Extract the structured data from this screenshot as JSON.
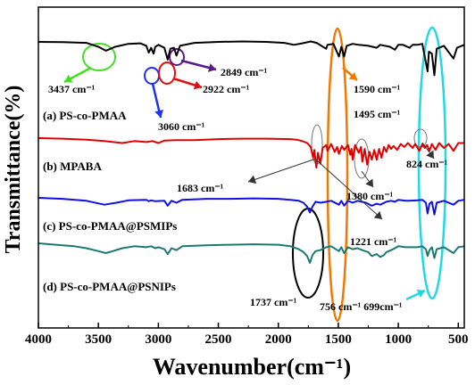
{
  "chart_data": {
    "type": "line",
    "xlabel": "Wavenumber(cm⁻¹)",
    "ylabel": "Transmittance(%)",
    "xlim": [
      4000,
      450
    ],
    "x_reversed": true,
    "x_ticks": [
      4000,
      3500,
      3000,
      2500,
      2000,
      1500,
      1000,
      500
    ],
    "grid": false,
    "series": [
      {
        "name": "(a) PS-co-PMAA",
        "color": "#000000",
        "points": [
          [
            4000,
            0.0
          ],
          [
            3800,
            0.5
          ],
          [
            3600,
            2
          ],
          [
            3500,
            10
          ],
          [
            3437,
            18
          ],
          [
            3360,
            10
          ],
          [
            3250,
            4
          ],
          [
            3150,
            3
          ],
          [
            3100,
            8
          ],
          [
            3080,
            22
          ],
          [
            3060,
            12
          ],
          [
            3040,
            24
          ],
          [
            3026,
            10
          ],
          [
            3000,
            6
          ],
          [
            2950,
            12
          ],
          [
            2922,
            36
          ],
          [
            2900,
            14
          ],
          [
            2870,
            12
          ],
          [
            2849,
            28
          ],
          [
            2820,
            8
          ],
          [
            2700,
            2
          ],
          [
            2500,
            0
          ],
          [
            2300,
            -1
          ],
          [
            2100,
            0
          ],
          [
            1950,
            2
          ],
          [
            1870,
            6
          ],
          [
            1800,
            3
          ],
          [
            1730,
            -1
          ],
          [
            1680,
            2
          ],
          [
            1601,
            14
          ],
          [
            1590,
            6
          ],
          [
            1540,
            4
          ],
          [
            1495,
            30
          ],
          [
            1475,
            10
          ],
          [
            1452,
            30
          ],
          [
            1430,
            8
          ],
          [
            1380,
            4
          ],
          [
            1330,
            6
          ],
          [
            1250,
            8
          ],
          [
            1180,
            12
          ],
          [
            1150,
            6
          ],
          [
            1070,
            10
          ],
          [
            1028,
            16
          ],
          [
            1000,
            6
          ],
          [
            960,
            6
          ],
          [
            906,
            12
          ],
          [
            880,
            6
          ],
          [
            840,
            6
          ],
          [
            800,
            4
          ],
          [
            756,
            60
          ],
          [
            745,
            20
          ],
          [
            720,
            24
          ],
          [
            699,
            68
          ],
          [
            680,
            14
          ],
          [
            620,
            8
          ],
          [
            540,
            34
          ],
          [
            510,
            12
          ],
          [
            450,
            6
          ]
        ]
      },
      {
        "name": "(b) MPABA",
        "color": "#e00000",
        "points": [
          [
            4000,
            0
          ],
          [
            3800,
            1
          ],
          [
            3600,
            3
          ],
          [
            3450,
            6
          ],
          [
            3300,
            10
          ],
          [
            3200,
            6
          ],
          [
            3100,
            8
          ],
          [
            3050,
            6
          ],
          [
            3000,
            10
          ],
          [
            2950,
            5
          ],
          [
            2850,
            4
          ],
          [
            2700,
            4
          ],
          [
            2500,
            2
          ],
          [
            2300,
            1
          ],
          [
            2100,
            1
          ],
          [
            1900,
            2
          ],
          [
            1850,
            3
          ],
          [
            1800,
            6
          ],
          [
            1760,
            10
          ],
          [
            1730,
            18
          ],
          [
            1710,
            40
          ],
          [
            1700,
            24
          ],
          [
            1683,
            60
          ],
          [
            1670,
            30
          ],
          [
            1650,
            52
          ],
          [
            1630,
            20
          ],
          [
            1600,
            14
          ],
          [
            1590,
            26
          ],
          [
            1560,
            12
          ],
          [
            1530,
            28
          ],
          [
            1510,
            18
          ],
          [
            1495,
            32
          ],
          [
            1470,
            16
          ],
          [
            1450,
            24
          ],
          [
            1420,
            14
          ],
          [
            1400,
            34
          ],
          [
            1390,
            22
          ],
          [
            1380,
            44
          ],
          [
            1360,
            14
          ],
          [
            1330,
            30
          ],
          [
            1310,
            18
          ],
          [
            1300,
            48
          ],
          [
            1280,
            22
          ],
          [
            1260,
            54
          ],
          [
            1240,
            28
          ],
          [
            1221,
            44
          ],
          [
            1200,
            24
          ],
          [
            1180,
            44
          ],
          [
            1160,
            22
          ],
          [
            1140,
            40
          ],
          [
            1120,
            18
          ],
          [
            1100,
            28
          ],
          [
            1080,
            14
          ],
          [
            1060,
            22
          ],
          [
            1040,
            16
          ],
          [
            1010,
            24
          ],
          [
            980,
            12
          ],
          [
            950,
            18
          ],
          [
            920,
            10
          ],
          [
            880,
            20
          ],
          [
            860,
            12
          ],
          [
            824,
            26
          ],
          [
            800,
            12
          ],
          [
            780,
            20
          ],
          [
            760,
            14
          ],
          [
            740,
            26
          ],
          [
            720,
            12
          ],
          [
            690,
            24
          ],
          [
            660,
            10
          ],
          [
            620,
            20
          ],
          [
            580,
            12
          ],
          [
            540,
            26
          ],
          [
            500,
            10
          ],
          [
            450,
            10
          ]
        ]
      },
      {
        "name": "(c) PS-co-PMAA@PSMIPs",
        "color": "#1010e0",
        "points": [
          [
            4000,
            0
          ],
          [
            3800,
            2
          ],
          [
            3600,
            6
          ],
          [
            3450,
            14
          ],
          [
            3350,
            10
          ],
          [
            3250,
            5
          ],
          [
            3100,
            4
          ],
          [
            3080,
            7
          ],
          [
            3060,
            5
          ],
          [
            3026,
            7
          ],
          [
            2950,
            6
          ],
          [
            2922,
            16
          ],
          [
            2890,
            6
          ],
          [
            2849,
            10
          ],
          [
            2800,
            4
          ],
          [
            2600,
            2
          ],
          [
            2400,
            2
          ],
          [
            2200,
            1
          ],
          [
            2000,
            2
          ],
          [
            1900,
            4
          ],
          [
            1830,
            6
          ],
          [
            1790,
            10
          ],
          [
            1760,
            18
          ],
          [
            1737,
            30
          ],
          [
            1715,
            18
          ],
          [
            1690,
            8
          ],
          [
            1650,
            10
          ],
          [
            1600,
            8
          ],
          [
            1560,
            6
          ],
          [
            1495,
            14
          ],
          [
            1475,
            6
          ],
          [
            1452,
            16
          ],
          [
            1420,
            6
          ],
          [
            1380,
            10
          ],
          [
            1340,
            6
          ],
          [
            1270,
            10
          ],
          [
            1221,
            16
          ],
          [
            1180,
            12
          ],
          [
            1150,
            14
          ],
          [
            1100,
            8
          ],
          [
            1060,
            6
          ],
          [
            1028,
            8
          ],
          [
            1000,
            4
          ],
          [
            940,
            6
          ],
          [
            906,
            6
          ],
          [
            840,
            5
          ],
          [
            800,
            4
          ],
          [
            770,
            10
          ],
          [
            756,
            32
          ],
          [
            740,
            12
          ],
          [
            720,
            8
          ],
          [
            699,
            34
          ],
          [
            680,
            10
          ],
          [
            620,
            6
          ],
          [
            540,
            14
          ],
          [
            500,
            6
          ],
          [
            450,
            4
          ]
        ]
      },
      {
        "name": "(d) PS-co-PMAA@PSNIPs",
        "color": "#1a7a72",
        "points": [
          [
            4000,
            0
          ],
          [
            3900,
            2
          ],
          [
            3800,
            4
          ],
          [
            3700,
            6
          ],
          [
            3600,
            10
          ],
          [
            3500,
            16
          ],
          [
            3437,
            20
          ],
          [
            3380,
            16
          ],
          [
            3300,
            10
          ],
          [
            3200,
            6
          ],
          [
            3100,
            8
          ],
          [
            3060,
            6
          ],
          [
            3026,
            10
          ],
          [
            3000,
            8
          ],
          [
            2950,
            12
          ],
          [
            2922,
            22
          ],
          [
            2890,
            10
          ],
          [
            2849,
            14
          ],
          [
            2800,
            6
          ],
          [
            2600,
            4
          ],
          [
            2400,
            3
          ],
          [
            2200,
            2
          ],
          [
            2000,
            3
          ],
          [
            1900,
            6
          ],
          [
            1830,
            12
          ],
          [
            1790,
            18
          ],
          [
            1760,
            26
          ],
          [
            1737,
            40
          ],
          [
            1715,
            24
          ],
          [
            1690,
            16
          ],
          [
            1650,
            14
          ],
          [
            1600,
            8
          ],
          [
            1560,
            6
          ],
          [
            1495,
            16
          ],
          [
            1475,
            8
          ],
          [
            1452,
            20
          ],
          [
            1420,
            8
          ],
          [
            1380,
            12
          ],
          [
            1340,
            10
          ],
          [
            1300,
            14
          ],
          [
            1250,
            18
          ],
          [
            1221,
            26
          ],
          [
            1180,
            22
          ],
          [
            1150,
            28
          ],
          [
            1120,
            24
          ],
          [
            1100,
            18
          ],
          [
            1060,
            14
          ],
          [
            1028,
            10
          ],
          [
            1000,
            6
          ],
          [
            940,
            8
          ],
          [
            906,
            8
          ],
          [
            840,
            8
          ],
          [
            800,
            6
          ],
          [
            770,
            12
          ],
          [
            756,
            26
          ],
          [
            740,
            14
          ],
          [
            720,
            8
          ],
          [
            699,
            30
          ],
          [
            680,
            12
          ],
          [
            620,
            8
          ],
          [
            540,
            20
          ],
          [
            500,
            8
          ],
          [
            450,
            6
          ]
        ]
      }
    ],
    "annotations": [
      {
        "text": "3437 cm⁻¹",
        "color": "#40d020"
      },
      {
        "text": "3060 cm⁻¹",
        "color": "#2030f0"
      },
      {
        "text": "2922 cm⁻¹",
        "color": "#e01010"
      },
      {
        "text": "2849 cm⁻¹",
        "color": "#5a1a8a"
      },
      {
        "text": "1590 cm⁻¹",
        "color": "#f07800"
      },
      {
        "text": "1495 cm⁻¹",
        "color": "#f07800"
      },
      {
        "text": "824 cm⁻¹",
        "color": "#000000"
      },
      {
        "text": "1683 cm⁻¹",
        "color": "#000000"
      },
      {
        "text": "1380 cm⁻¹",
        "color": "#000000"
      },
      {
        "text": "1221 cm⁻¹",
        "color": "#000000"
      },
      {
        "text": "1737 cm⁻¹",
        "color": "#000000"
      },
      {
        "text": "756 cm⁻¹ 699cm⁻¹",
        "color": "#20d8e8"
      }
    ],
    "highlight_colors": {
      "circle_3437": "#40e020",
      "circle_3060": "#2030f0",
      "circle_2922": "#e01010",
      "circle_2849": "#5a1a8a",
      "ellipse_1590_1495": "#f07800",
      "ellipse_756_699": "#20d8e8",
      "ellipse_1737": "#000000"
    }
  }
}
